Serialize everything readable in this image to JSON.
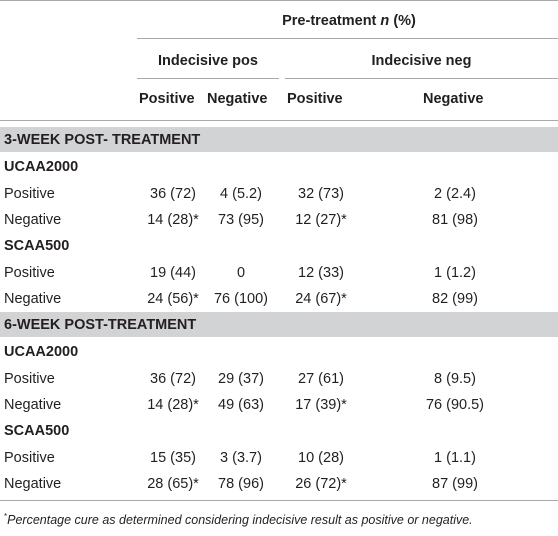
{
  "header": {
    "pretreatment_label": "Pre-treatment",
    "pretreatment_n": "n",
    "pretreatment_pct": "(%)",
    "group1": "Indecisive pos",
    "group2": "Indecisive neg",
    "cols": [
      "Positive",
      "Negative",
      "Positive",
      "Negative"
    ]
  },
  "sections": [
    {
      "title": "3-WEEK POST- TREATMENT",
      "subgroups": [
        {
          "name": "UCAA2000",
          "rows": [
            {
              "label": "Positive",
              "values": [
                "36 (72)",
                "4 (5.2)",
                "32 (73)",
                "2 (2.4)"
              ]
            },
            {
              "label": "Negative",
              "values": [
                "14 (28)*",
                "73 (95)",
                "12 (27)*",
                "81 (98)"
              ]
            }
          ]
        },
        {
          "name": "SCAA500",
          "rows": [
            {
              "label": "Positive",
              "values": [
                "19 (44)",
                "0",
                "12 (33)",
                "1 (1.2)"
              ]
            },
            {
              "label": "Negative",
              "values": [
                "24 (56)*",
                "76 (100)",
                "24 (67)*",
                "82 (99)"
              ]
            }
          ]
        }
      ]
    },
    {
      "title": "6-WEEK POST-TREATMENT",
      "subgroups": [
        {
          "name": "UCAA2000",
          "rows": [
            {
              "label": "Positive",
              "values": [
                "36 (72)",
                "29 (37)",
                "27 (61)",
                "8 (9.5)"
              ]
            },
            {
              "label": "Negative",
              "values": [
                "14 (28)*",
                "49 (63)",
                "17 (39)*",
                "76 (90.5)"
              ]
            }
          ]
        },
        {
          "name": "SCAA500",
          "rows": [
            {
              "label": "Positive",
              "values": [
                "15 (35)",
                "3 (3.7)",
                "10 (28)",
                "1 (1.1)"
              ]
            },
            {
              "label": "Negative",
              "values": [
                "28 (65)*",
                "78 (96)",
                "26 (72)*",
                "87 (99)"
              ]
            }
          ]
        }
      ]
    }
  ],
  "footnote": {
    "marker": "*",
    "text": "Percentage cure as determined considering indecisive result as positive or negative."
  }
}
